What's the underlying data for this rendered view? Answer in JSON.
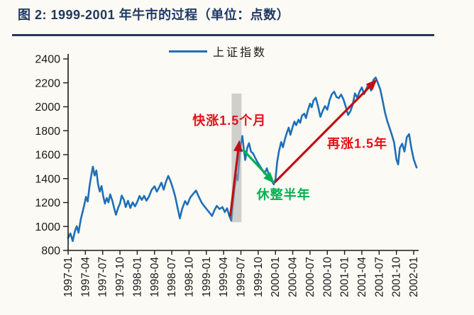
{
  "colors": {
    "title_navy": "#1F3864",
    "rule_navy": "#24395B",
    "line_blue": "#1E6FB8",
    "arrow_red": "#C01015",
    "text_red": "#E3121B",
    "green": "#00B050",
    "band_gray": "#ABABAB",
    "axis": "#1A1A1A",
    "background": "#FBFAF4"
  },
  "chart_data": {
    "type": "line",
    "title": "图 2: 1999-2001 年牛市的过程（单位：点数）",
    "legend": [
      {
        "label": "上证指数",
        "color": "#1E6FB8"
      }
    ],
    "legend_position": "top-center",
    "grid": false,
    "ylim": [
      800,
      2400
    ],
    "yticks": [
      800,
      1000,
      1200,
      1400,
      1600,
      1800,
      2000,
      2200,
      2400
    ],
    "xticks": [
      "1997-01",
      "1997-04",
      "1997-07",
      "1997-10",
      "1998-01",
      "1998-04",
      "1998-07",
      "1998-10",
      "1999-01",
      "1999-04",
      "1999-07",
      "1999-10",
      "2000-01",
      "2000-04",
      "2000-07",
      "2000-10",
      "2001-01",
      "2001-04",
      "2001-07",
      "2001-10",
      "2002-01"
    ],
    "x_encoding": "months since 1997-01, quarterly ticks every 3 months",
    "series": [
      {
        "name": "上证指数",
        "color": "#1E6FB8",
        "points": [
          [
            0,
            905
          ],
          [
            0.4,
            942
          ],
          [
            0.8,
            878
          ],
          [
            1.2,
            965
          ],
          [
            1.5,
            1002
          ],
          [
            1.8,
            948
          ],
          [
            2.2,
            1062
          ],
          [
            2.5,
            1118
          ],
          [
            2.8,
            1178
          ],
          [
            3.1,
            1248
          ],
          [
            3.4,
            1208
          ],
          [
            3.7,
            1330
          ],
          [
            4.0,
            1422
          ],
          [
            4.3,
            1500
          ],
          [
            4.6,
            1425
          ],
          [
            4.9,
            1468
          ],
          [
            5.2,
            1352
          ],
          [
            5.5,
            1292
          ],
          [
            5.8,
            1338
          ],
          [
            6.1,
            1252
          ],
          [
            6.4,
            1192
          ],
          [
            6.7,
            1238
          ],
          [
            7.0,
            1202
          ],
          [
            7.3,
            1268
          ],
          [
            7.7,
            1212
          ],
          [
            8.0,
            1152
          ],
          [
            8.3,
            1098
          ],
          [
            8.7,
            1158
          ],
          [
            9.0,
            1192
          ],
          [
            9.3,
            1258
          ],
          [
            9.7,
            1222
          ],
          [
            10.0,
            1162
          ],
          [
            10.4,
            1215
          ],
          [
            10.8,
            1155
          ],
          [
            11.2,
            1202
          ],
          [
            11.6,
            1168
          ],
          [
            12.0,
            1205
          ],
          [
            12.4,
            1255
          ],
          [
            12.8,
            1222
          ],
          [
            13.2,
            1256
          ],
          [
            13.6,
            1216
          ],
          [
            14.0,
            1246
          ],
          [
            14.5,
            1306
          ],
          [
            15.0,
            1336
          ],
          [
            15.4,
            1292
          ],
          [
            15.8,
            1326
          ],
          [
            16.2,
            1366
          ],
          [
            16.6,
            1308
          ],
          [
            17.0,
            1376
          ],
          [
            17.4,
            1422
          ],
          [
            17.8,
            1376
          ],
          [
            18.2,
            1318
          ],
          [
            18.6,
            1248
          ],
          [
            19.0,
            1158
          ],
          [
            19.4,
            1068
          ],
          [
            19.8,
            1148
          ],
          [
            20.3,
            1212
          ],
          [
            20.7,
            1182
          ],
          [
            21.2,
            1242
          ],
          [
            21.7,
            1272
          ],
          [
            22.2,
            1300
          ],
          [
            22.7,
            1248
          ],
          [
            23.2,
            1198
          ],
          [
            23.6,
            1172
          ],
          [
            24.0,
            1148
          ],
          [
            24.5,
            1118
          ],
          [
            25.0,
            1088
          ],
          [
            25.4,
            1136
          ],
          [
            25.8,
            1172
          ],
          [
            26.3,
            1146
          ],
          [
            26.8,
            1162
          ],
          [
            27.2,
            1120
          ],
          [
            27.6,
            1152
          ],
          [
            28.0,
            1086
          ],
          [
            28.35,
            1048
          ],
          [
            28.6,
            1182
          ],
          [
            28.9,
            1322
          ],
          [
            29.2,
            1432
          ],
          [
            29.45,
            1386
          ],
          [
            29.7,
            1552
          ],
          [
            30.0,
            1692
          ],
          [
            30.25,
            1756
          ],
          [
            30.5,
            1645
          ],
          [
            30.75,
            1556
          ],
          [
            31.1,
            1656
          ],
          [
            31.4,
            1696
          ],
          [
            31.75,
            1626
          ],
          [
            32.1,
            1612
          ],
          [
            32.5,
            1572
          ],
          [
            32.9,
            1536
          ],
          [
            33.3,
            1506
          ],
          [
            33.7,
            1476
          ],
          [
            34.1,
            1442
          ],
          [
            34.5,
            1486
          ],
          [
            34.9,
            1426
          ],
          [
            35.3,
            1386
          ],
          [
            35.7,
            1352
          ],
          [
            36.0,
            1392
          ],
          [
            36.3,
            1538
          ],
          [
            36.6,
            1628
          ],
          [
            37.0,
            1706
          ],
          [
            37.3,
            1662
          ],
          [
            37.6,
            1722
          ],
          [
            38.0,
            1786
          ],
          [
            38.3,
            1826
          ],
          [
            38.6,
            1766
          ],
          [
            39.0,
            1836
          ],
          [
            39.3,
            1876
          ],
          [
            39.6,
            1846
          ],
          [
            40.0,
            1892
          ],
          [
            40.3,
            1866
          ],
          [
            40.6,
            1926
          ],
          [
            41.0,
            1942
          ],
          [
            41.3,
            1906
          ],
          [
            41.6,
            1966
          ],
          [
            42.0,
            2026
          ],
          [
            42.3,
            1996
          ],
          [
            42.6,
            2052
          ],
          [
            43.0,
            2076
          ],
          [
            43.4,
            2002
          ],
          [
            43.8,
            1916
          ],
          [
            44.2,
            1966
          ],
          [
            44.6,
            2006
          ],
          [
            45.0,
            1976
          ],
          [
            45.4,
            2056
          ],
          [
            45.8,
            2106
          ],
          [
            46.2,
            2126
          ],
          [
            46.6,
            2082
          ],
          [
            47.0,
            2072
          ],
          [
            47.4,
            2102
          ],
          [
            47.8,
            2062
          ],
          [
            48.2,
            2002
          ],
          [
            48.6,
            1932
          ],
          [
            49.0,
            1962
          ],
          [
            49.4,
            2016
          ],
          [
            49.8,
            2112
          ],
          [
            50.2,
            2076
          ],
          [
            50.6,
            2126
          ],
          [
            51.0,
            2162
          ],
          [
            51.4,
            2106
          ],
          [
            51.8,
            2152
          ],
          [
            52.2,
            2192
          ],
          [
            52.6,
            2136
          ],
          [
            53.0,
            2222
          ],
          [
            53.4,
            2245
          ],
          [
            53.8,
            2196
          ],
          [
            54.2,
            2146
          ],
          [
            54.6,
            2052
          ],
          [
            55.0,
            1956
          ],
          [
            55.4,
            1882
          ],
          [
            55.8,
            1826
          ],
          [
            56.2,
            1766
          ],
          [
            56.6,
            1702
          ],
          [
            57.0,
            1562
          ],
          [
            57.3,
            1518
          ],
          [
            57.6,
            1656
          ],
          [
            58.0,
            1692
          ],
          [
            58.4,
            1626
          ],
          [
            58.8,
            1746
          ],
          [
            59.2,
            1772
          ],
          [
            59.6,
            1652
          ],
          [
            60.0,
            1562
          ],
          [
            60.5,
            1492
          ]
        ]
      }
    ],
    "band": {
      "m0": 28.4,
      "m1": 30.1,
      "v0": 1035,
      "v1": 2110,
      "color": "#ABABAB",
      "opacity": 0.55
    },
    "arrows": [
      {
        "name": "rapid-rise-arrow",
        "from_m": 28.15,
        "from_v": 1085,
        "to_m": 29.75,
        "to_v": 1722,
        "color": "#C01015"
      },
      {
        "name": "consolidation-arrow",
        "from_m": 30.3,
        "from_v": 1645,
        "to_m": 35.85,
        "to_v": 1360,
        "color": "#00B050"
      },
      {
        "name": "second-rise-arrow",
        "from_m": 35.9,
        "from_v": 1370,
        "to_m": 53.65,
        "to_v": 2230,
        "color": "#C01015"
      }
    ],
    "annotations": [
      {
        "text": "快涨1.5个月",
        "m": 28.0,
        "v": 1850,
        "color": "#E3121B"
      },
      {
        "text": "休整半年",
        "m": 37.4,
        "v": 1230,
        "color": "#00B050"
      },
      {
        "text": "再涨1.5年",
        "m": 50.2,
        "v": 1655,
        "color": "#E3121B"
      }
    ]
  }
}
